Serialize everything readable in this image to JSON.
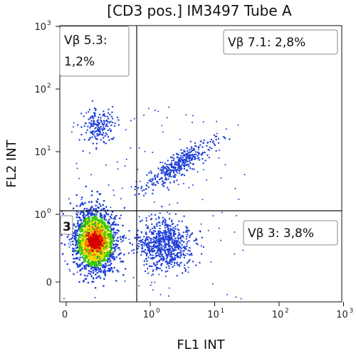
{
  "chart_data": {
    "type": "scatter",
    "title": "[CD3 pos.] IM3497 Tube A",
    "xlabel": "FL1 INT",
    "ylabel": "FL2 INT",
    "x_scale": "log",
    "y_scale": "log",
    "xlim": [
      0,
      1000
    ],
    "ylim": [
      0,
      1000
    ],
    "x_ticks": [
      {
        "base": "0",
        "exp": ""
      },
      {
        "base": "10",
        "exp": "0"
      },
      {
        "base": "10",
        "exp": "1"
      },
      {
        "base": "10",
        "exp": "2"
      },
      {
        "base": "10",
        "exp": "3"
      }
    ],
    "y_ticks": [
      {
        "base": "0",
        "exp": ""
      },
      {
        "base": "10",
        "exp": "0"
      },
      {
        "base": "10",
        "exp": "1"
      },
      {
        "base": "10",
        "exp": "2"
      },
      {
        "base": "10",
        "exp": "3"
      }
    ],
    "gates": {
      "x_divider": 0.6,
      "y_divider": 1
    },
    "quadrant_labels": [
      {
        "text": "Vβ 5.3:",
        "text2": "1,2%",
        "position": "top-left"
      },
      {
        "text": "Vβ 7.1: 2,8%",
        "position": "top-right"
      },
      {
        "text": "Vβ 3: 3,8%",
        "position": "bottom-right"
      },
      {
        "text": "3",
        "position": "bottom-left"
      }
    ],
    "populations": [
      {
        "name": "",
        "x_center": 0.22,
        "y_center": 0.25,
        "density": "high",
        "colors": [
          "#d40000",
          "#ff6a00",
          "#ffd800",
          "#35c800",
          "#1e3fd8"
        ]
      },
      {
        "name": "",
        "x_center": 1.6,
        "y_center": 0.28,
        "density": "medium",
        "colors": [
          "#1e3fd8"
        ]
      },
      {
        "name": "",
        "x_center": 0.25,
        "y_center": 25,
        "density": "low",
        "colors": [
          "#1e3fd8"
        ]
      },
      {
        "name": "",
        "x_center": 2.2,
        "y_center": 4,
        "density": "medium",
        "colors": [
          "#1e3fd8"
        ]
      }
    ]
  }
}
